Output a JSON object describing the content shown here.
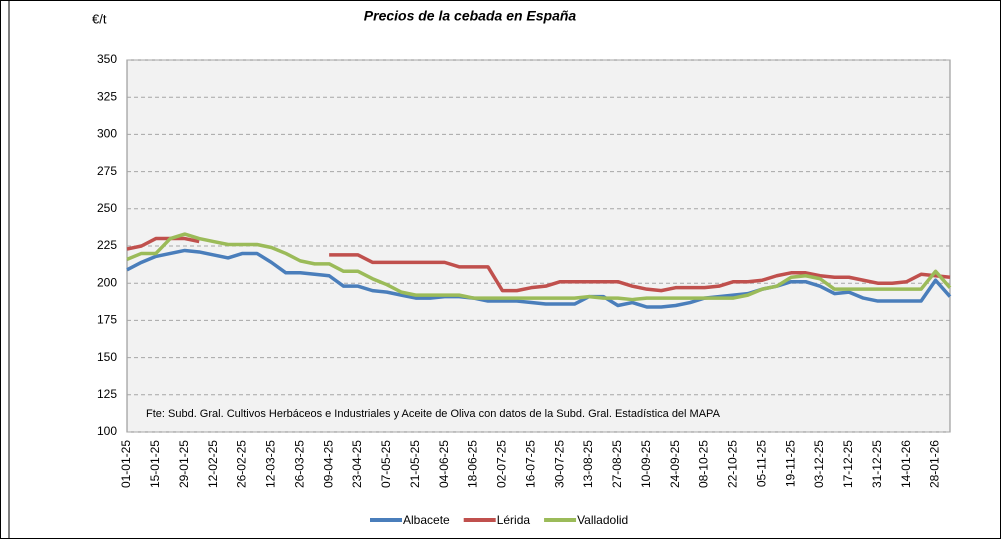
{
  "chart_data": {
    "type": "line",
    "title": "Precios de la cebada en España",
    "y_label": "€/t",
    "annotation": "Fte: Subd. Gral. Cultivos Herbáceos e Industriales y Aceite de Oliva con datos de la Subd. Gral. Estadística del MAPA",
    "categories": [
      "01-01-25",
      null,
      "15-01-25",
      null,
      "29-01-25",
      null,
      "12-02-25",
      null,
      "26-02-25",
      null,
      "12-03-25",
      null,
      "26-03-25",
      null,
      "09-04-25",
      null,
      "23-04-25",
      null,
      "07-05-25",
      null,
      "21-05-25",
      null,
      "04-06-25",
      null,
      "18-06-25",
      null,
      "02-07-25",
      null,
      "16-07-25",
      null,
      "30-07-25",
      null,
      "13-08-25",
      null,
      "27-08-25",
      null,
      "10-09-25",
      null,
      "24-09-25",
      null,
      "08-10-25",
      null,
      "22-10-25",
      null,
      "05-11-25",
      null,
      "19-11-25",
      null,
      "03-12-25",
      null,
      "17-12-25",
      null,
      "31-12-25",
      null,
      "14-01-26",
      null,
      "28-01-26",
      null
    ],
    "series": [
      {
        "name": "Albacete",
        "color": "#4a7ebb",
        "values": [
          209,
          214,
          218,
          220,
          222,
          221,
          219,
          217,
          220,
          220,
          214,
          207,
          207,
          206,
          205,
          198,
          198,
          195,
          194,
          192,
          190,
          190,
          191,
          191,
          190,
          188,
          188,
          188,
          187,
          186,
          186,
          186,
          191,
          191,
          185,
          187,
          184,
          184,
          185,
          187,
          190,
          191,
          192,
          193,
          196,
          198,
          201,
          201,
          198,
          193,
          194,
          190,
          188,
          188,
          188,
          188,
          202,
          191
        ]
      },
      {
        "name": "Lérida",
        "color": "#c0504d",
        "values": [
          223,
          225,
          230,
          230,
          230,
          228,
          null,
          null,
          null,
          null,
          null,
          null,
          null,
          null,
          219,
          219,
          219,
          214,
          214,
          214,
          214,
          214,
          214,
          211,
          211,
          211,
          195,
          195,
          197,
          198,
          201,
          201,
          201,
          201,
          201,
          198,
          196,
          195,
          197,
          197,
          197,
          198,
          201,
          201,
          202,
          205,
          207,
          207,
          205,
          204,
          204,
          202,
          200,
          200,
          201,
          206,
          205,
          204
        ]
      },
      {
        "name": "Valladolid",
        "color": "#9bbb59",
        "values": [
          216,
          220,
          220,
          230,
          233,
          230,
          228,
          226,
          226,
          226,
          224,
          220,
          215,
          213,
          213,
          208,
          208,
          203,
          199,
          194,
          192,
          192,
          192,
          192,
          190,
          190,
          190,
          190,
          190,
          190,
          190,
          190,
          191,
          190,
          190,
          189,
          190,
          190,
          190,
          190,
          190,
          190,
          190,
          192,
          196,
          198,
          204,
          205,
          203,
          196,
          196,
          196,
          196,
          196,
          196,
          196,
          208,
          197
        ]
      }
    ],
    "ylim": [
      100,
      350
    ],
    "yticks": [
      100,
      125,
      150,
      175,
      200,
      225,
      250,
      275,
      300,
      325,
      350
    ],
    "grid": true,
    "legend": "bottom"
  }
}
